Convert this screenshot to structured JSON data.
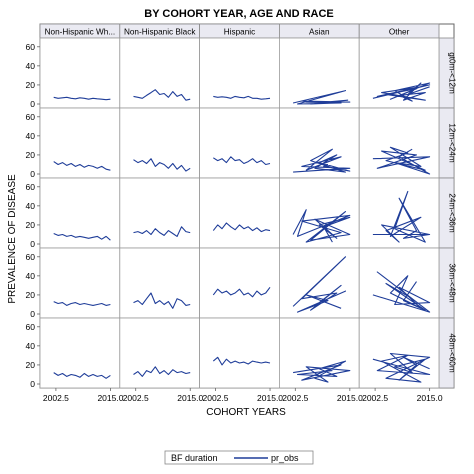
{
  "chart_data": {
    "type": "line",
    "title": "BY COHORT YEAR, AGE AND RACE",
    "xlabel": "COHORT YEARS",
    "ylabel": "PREVALENCE OF DISEASE",
    "xlim": [
      2000,
      2016
    ],
    "ylim": [
      0,
      65
    ],
    "x_ticks": [
      "2002.5",
      "2015.0"
    ],
    "y_ticks": [
      "0",
      "20",
      "40",
      "60"
    ],
    "grid": true,
    "legend_position": "bottom",
    "legend": {
      "title": "BF duration",
      "entries": [
        {
          "name": "pr_obs",
          "color": "#1f3d99"
        }
      ]
    },
    "columns": [
      "Non-Hispanic Wh...",
      "Non-Hispanic Black",
      "Hispanic",
      "Asian",
      "Other"
    ],
    "rows": [
      "gt0m-<12m",
      "12m-<24m",
      "24m-<36m",
      "36m-<48m",
      "48m-<60m"
    ],
    "panels": [
      [
        {
          "x": [
            2002,
            2003,
            2004,
            2005,
            2006,
            2007,
            2008,
            2009,
            2010,
            2011,
            2012,
            2013,
            2014,
            2015
          ],
          "y": [
            7,
            6,
            6.5,
            7,
            6,
            5.5,
            6.5,
            6,
            5,
            6,
            5.5,
            5,
            4.5,
            5
          ]
        },
        {
          "x": [
            2002,
            2003,
            2004,
            2005,
            2006,
            2007,
            2008,
            2009,
            2010,
            2011,
            2012,
            2013,
            2014,
            2015
          ],
          "y": [
            8,
            7,
            6,
            9,
            12,
            15,
            10,
            11,
            7,
            13,
            8,
            10,
            4,
            5
          ]
        },
        {
          "x": [
            2002,
            2003,
            2004,
            2005,
            2006,
            2007,
            2008,
            2009,
            2010,
            2011,
            2012,
            2013,
            2014,
            2015
          ],
          "y": [
            8,
            7,
            7.5,
            7,
            6,
            8,
            7,
            6.5,
            8,
            6,
            6,
            5,
            5.5,
            6
          ]
        },
        {
          "x": [
            2002,
            2014,
            2003,
            2013,
            2004,
            2015,
            2005,
            2012,
            2006,
            2014.5,
            2007,
            2011
          ],
          "y": [
            1,
            14,
            0,
            1,
            3,
            2,
            2,
            1,
            0,
            4,
            1,
            2
          ]
        },
        {
          "x": [
            2002,
            2015,
            2003,
            2013,
            2004,
            2014,
            2005,
            2012,
            2006,
            2015,
            2007,
            2011,
            2008,
            2014,
            2009,
            2013,
            2010,
            2015
          ],
          "y": [
            6,
            20,
            8,
            18,
            12,
            4,
            10,
            16,
            5,
            22,
            14,
            3,
            9,
            12,
            4,
            22,
            10,
            18
          ]
        }
      ],
      [
        {
          "x": [
            2002,
            2003,
            2004,
            2005,
            2006,
            2007,
            2008,
            2009,
            2010,
            2011,
            2012,
            2013,
            2014,
            2015
          ],
          "y": [
            13,
            10,
            12,
            9,
            11,
            8,
            10,
            7,
            9,
            8,
            6,
            8,
            5,
            4
          ]
        },
        {
          "x": [
            2002,
            2003,
            2004,
            2005,
            2006,
            2007,
            2008,
            2009,
            2010,
            2011,
            2012,
            2013,
            2014,
            2015
          ],
          "y": [
            15,
            12,
            14,
            11,
            16,
            8,
            12,
            10,
            6,
            11,
            5,
            9,
            3,
            6
          ]
        },
        {
          "x": [
            2002,
            2003,
            2004,
            2005,
            2006,
            2007,
            2008,
            2009,
            2010,
            2011,
            2012,
            2013,
            2014,
            2015
          ],
          "y": [
            17,
            14,
            16,
            12,
            18,
            14,
            15,
            11,
            13,
            16,
            12,
            14,
            10,
            11
          ]
        },
        {
          "x": [
            2002,
            2015,
            2004,
            2013,
            2005,
            2011,
            2006,
            2014,
            2007,
            2012,
            2008,
            2015,
            2009,
            2010
          ],
          "y": [
            2,
            6,
            8,
            18,
            4,
            26,
            14,
            2,
            6,
            20,
            12,
            3,
            8,
            10
          ]
        },
        {
          "x": [
            2002,
            2015,
            2003,
            2012,
            2004,
            2014,
            2005,
            2010,
            2006,
            2013,
            2007,
            2015,
            2008,
            2011
          ],
          "y": [
            16,
            18,
            6,
            20,
            24,
            4,
            14,
            22,
            28,
            8,
            12,
            0,
            18,
            26
          ]
        }
      ],
      [
        {
          "x": [
            2002,
            2003,
            2004,
            2005,
            2006,
            2007,
            2008,
            2009,
            2010,
            2011,
            2012,
            2013,
            2014,
            2015
          ],
          "y": [
            11,
            9,
            10,
            8,
            9,
            7,
            8,
            7,
            6,
            7,
            8,
            5,
            8,
            4
          ]
        },
        {
          "x": [
            2002,
            2003,
            2004,
            2005,
            2006,
            2007,
            2008,
            2009,
            2010,
            2011,
            2012,
            2013,
            2014,
            2015
          ],
          "y": [
            12,
            13,
            11,
            14,
            10,
            16,
            12,
            9,
            14,
            11,
            8,
            18,
            13,
            12
          ]
        },
        {
          "x": [
            2002,
            2003,
            2004,
            2005,
            2006,
            2007,
            2008,
            2009,
            2010,
            2011,
            2012,
            2013,
            2014,
            2015
          ],
          "y": [
            14,
            20,
            16,
            22,
            18,
            15,
            20,
            16,
            18,
            14,
            17,
            13,
            15,
            14
          ]
        },
        {
          "x": [
            2002,
            2005,
            2003,
            2015,
            2004,
            2013,
            2005,
            2014,
            2006,
            2015,
            2007,
            2012,
            2008,
            2015,
            2009,
            2011
          ],
          "y": [
            10,
            36,
            8,
            30,
            24,
            12,
            2,
            34,
            4,
            10,
            26,
            6,
            20,
            28,
            18,
            2
          ]
        },
        {
          "x": [
            2002,
            2015,
            2004,
            2008,
            2005,
            2013,
            2006,
            2010,
            2007,
            2014,
            2008,
            2012,
            2009,
            2015
          ],
          "y": [
            10,
            10,
            20,
            2,
            14,
            28,
            8,
            55,
            16,
            2,
            48,
            14,
            6,
            10
          ]
        }
      ],
      [
        {
          "x": [
            2002,
            2003,
            2004,
            2005,
            2006,
            2007,
            2008,
            2009,
            2010,
            2011,
            2012,
            2013,
            2014,
            2015
          ],
          "y": [
            13,
            11,
            12,
            9,
            11,
            12,
            10,
            11,
            10,
            9,
            10,
            11,
            9,
            10
          ]
        },
        {
          "x": [
            2002,
            2003,
            2004,
            2005,
            2006,
            2007,
            2008,
            2009,
            2010,
            2011,
            2012,
            2013,
            2014,
            2015
          ],
          "y": [
            12,
            14,
            10,
            16,
            22,
            11,
            14,
            10,
            13,
            6,
            16,
            14,
            9,
            10
          ]
        },
        {
          "x": [
            2002,
            2003,
            2004,
            2005,
            2006,
            2007,
            2008,
            2009,
            2010,
            2011,
            2012,
            2013,
            2014,
            2015
          ],
          "y": [
            20,
            26,
            22,
            24,
            20,
            22,
            26,
            20,
            22,
            18,
            24,
            20,
            22,
            28
          ]
        },
        {
          "x": [
            2002,
            2014,
            2004,
            2012,
            2006,
            2013,
            2008,
            2014,
            2003,
            2010,
            2005,
            2013
          ],
          "y": [
            8,
            60,
            16,
            22,
            4,
            30,
            12,
            24,
            2,
            14,
            20,
            6
          ]
        },
        {
          "x": [
            2002,
            2015,
            2003,
            2011,
            2005,
            2014,
            2006,
            2010,
            2007,
            2015,
            2008,
            2013,
            2009,
            2012
          ],
          "y": [
            20,
            2,
            44,
            16,
            32,
            4,
            22,
            40,
            10,
            12,
            28,
            6,
            14,
            34
          ]
        }
      ],
      [
        {
          "x": [
            2002,
            2003,
            2004,
            2005,
            2006,
            2007,
            2008,
            2009,
            2010,
            2011,
            2012,
            2013,
            2014,
            2015
          ],
          "y": [
            12,
            9,
            11,
            8,
            10,
            9,
            7,
            11,
            8,
            10,
            8,
            9,
            6,
            9
          ]
        },
        {
          "x": [
            2002,
            2003,
            2004,
            2005,
            2006,
            2007,
            2008,
            2009,
            2010,
            2011,
            2012,
            2013,
            2014,
            2015
          ],
          "y": [
            10,
            13,
            8,
            14,
            12,
            18,
            11,
            14,
            10,
            15,
            12,
            13,
            11,
            12
          ]
        },
        {
          "x": [
            2002,
            2003,
            2004,
            2005,
            2006,
            2007,
            2008,
            2009,
            2010,
            2011,
            2012,
            2013,
            2014,
            2015
          ],
          "y": [
            24,
            28,
            20,
            26,
            22,
            24,
            22,
            23,
            21,
            24,
            23,
            22,
            23,
            22
          ]
        },
        {
          "x": [
            2002,
            2013,
            2004,
            2015,
            2005,
            2010,
            2007,
            2014,
            2008,
            2012,
            2003,
            2011
          ],
          "y": [
            12,
            20,
            4,
            14,
            18,
            2,
            6,
            24,
            16,
            8,
            10,
            14
          ]
        },
        {
          "x": [
            2002,
            2015,
            2003,
            2010,
            2004,
            2013,
            2005,
            2015,
            2006,
            2011,
            2007,
            2014,
            2008,
            2012,
            2009,
            2015
          ],
          "y": [
            26,
            10,
            14,
            30,
            24,
            2,
            6,
            28,
            32,
            12,
            18,
            26,
            4,
            20,
            28,
            16
          ]
        }
      ]
    ]
  }
}
